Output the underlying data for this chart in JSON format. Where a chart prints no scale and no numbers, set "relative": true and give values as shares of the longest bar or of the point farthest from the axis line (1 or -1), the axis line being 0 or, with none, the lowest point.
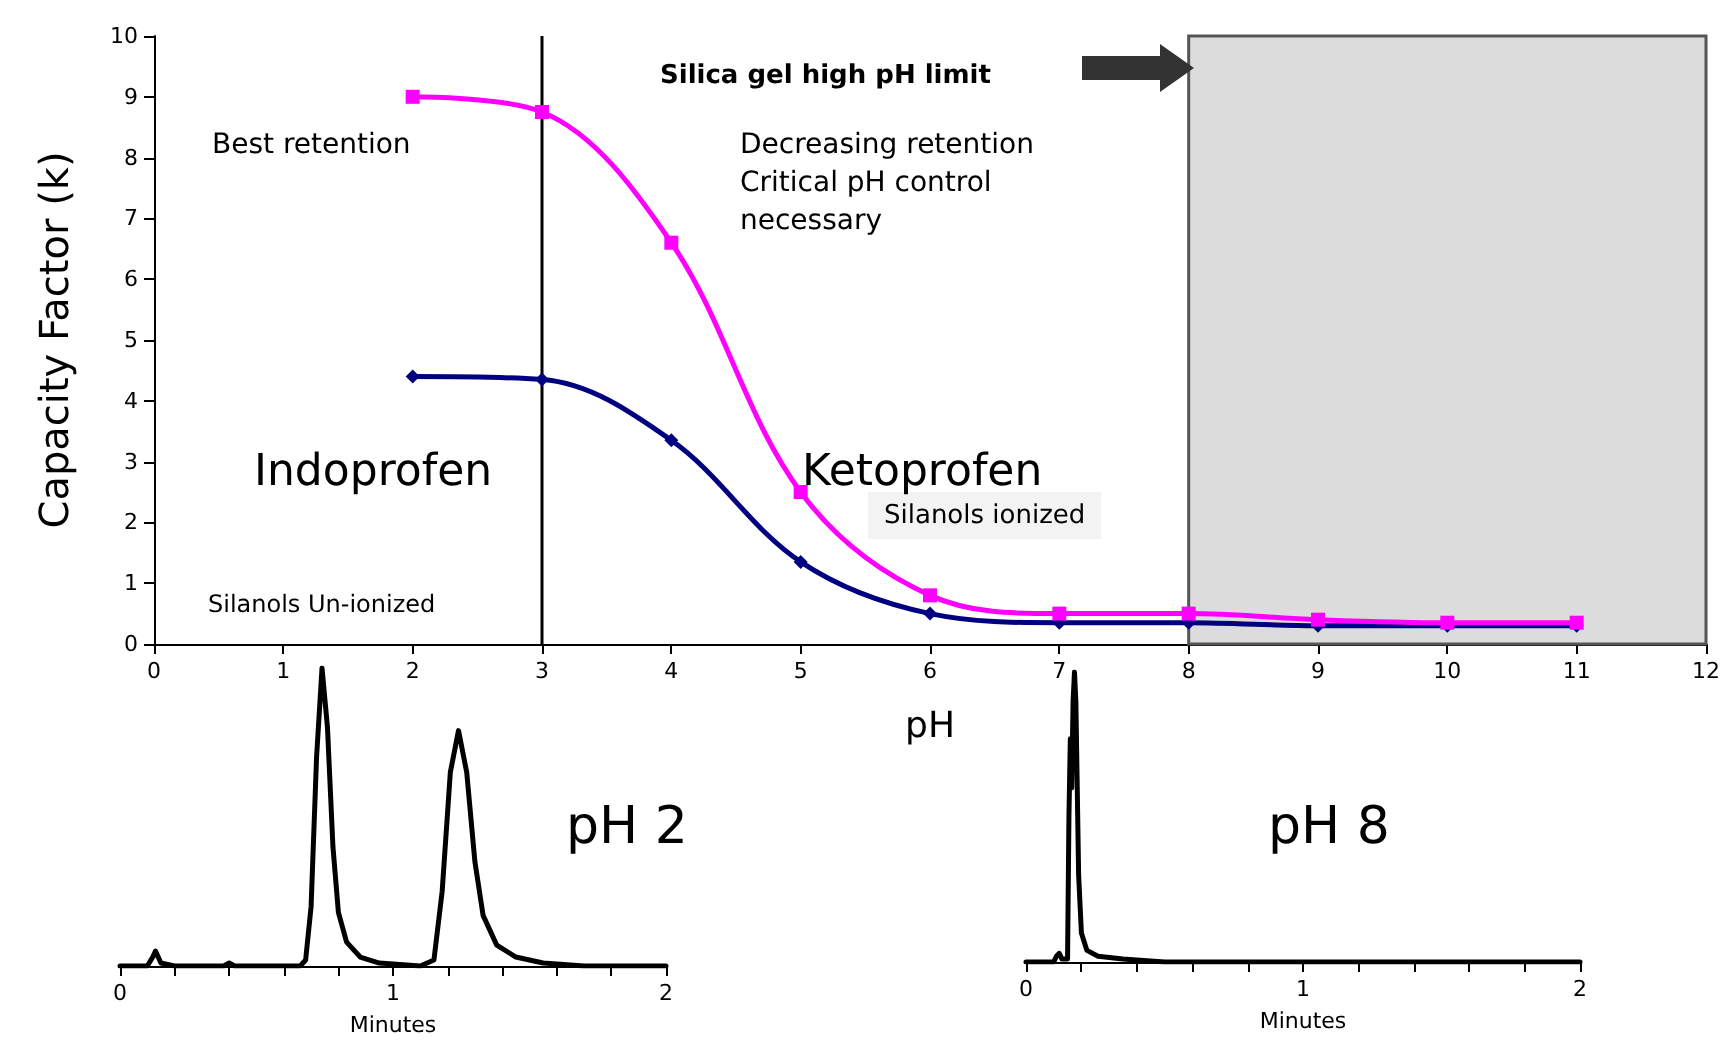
{
  "chart_data": [
    {
      "type": "line",
      "xlabel": "pH",
      "ylabel": "Capacity Factor (k)",
      "x": [
        2,
        3,
        4,
        5,
        6,
        7,
        8,
        9,
        10,
        11
      ],
      "series": [
        {
          "name": "Indoprofen",
          "color": "#000080",
          "marker": "diamond",
          "values": [
            4.4,
            4.35,
            3.35,
            1.35,
            0.5,
            0.35,
            0.35,
            0.3,
            0.3,
            0.3
          ]
        },
        {
          "name": "Ketoprofen",
          "color": "#ff00ff",
          "marker": "square",
          "values": [
            9.0,
            8.75,
            6.6,
            2.5,
            0.8,
            0.5,
            0.5,
            0.4,
            0.35,
            0.35
          ]
        }
      ],
      "xlim": [
        0,
        12
      ],
      "xticks": [
        0,
        1,
        2,
        3,
        4,
        5,
        6,
        7,
        8,
        9,
        10,
        11,
        12
      ],
      "ylim": [
        0,
        10
      ],
      "yticks": [
        0,
        1,
        2,
        3,
        4,
        5,
        6,
        7,
        8,
        9,
        10
      ],
      "ref_lines": [
        {
          "axis": "x",
          "value": 3,
          "color": "#000000"
        }
      ],
      "bands": [
        {
          "axis": "x",
          "from": 8,
          "to": 12,
          "color": "#dcdcdc"
        }
      ],
      "annotations": [
        "Best retention",
        "Decreasing retention\nCritical pH control\nnecessary",
        "Silanols ionized",
        "Silanols Un-ionized",
        "Silica gel high pH limit"
      ]
    },
    {
      "type": "line",
      "relative": true,
      "xlabel": "Minutes",
      "tick_labels": "x",
      "series": [
        {
          "color": "#000000",
          "marker": "none",
          "x": [
            0,
            0.1,
            0.12,
            0.13,
            0.15,
            0.2,
            0.38,
            0.4,
            0.42,
            0.66,
            0.68,
            0.7,
            0.72,
            0.74,
            0.76,
            0.78,
            0.8,
            0.83,
            0.88,
            0.95,
            1.1,
            1.15,
            1.18,
            1.21,
            1.24,
            1.27,
            1.3,
            1.33,
            1.38,
            1.45,
            1.55,
            1.7,
            2
          ],
          "values": [
            0,
            0,
            0.03,
            0.05,
            0.01,
            0,
            0,
            0.01,
            0,
            0,
            0.02,
            0.2,
            0.7,
            1,
            0.8,
            0.4,
            0.18,
            0.08,
            0.03,
            0.01,
            0,
            0.02,
            0.25,
            0.65,
            0.79,
            0.65,
            0.35,
            0.17,
            0.07,
            0.03,
            0.01,
            0,
            0
          ]
        }
      ],
      "xlim": [
        0,
        2
      ],
      "xticks": [
        0,
        {
          "value": 0.2,
          "label": null
        },
        {
          "value": 0.4,
          "label": null
        },
        {
          "value": 0.6,
          "label": null
        },
        {
          "value": 0.8,
          "label": null
        },
        1,
        {
          "value": 1.2,
          "label": null
        },
        {
          "value": 1.4,
          "label": null
        },
        {
          "value": 1.6,
          "label": null
        },
        {
          "value": 1.8,
          "label": null
        },
        2
      ],
      "annotations": [
        "pH 2"
      ]
    },
    {
      "type": "line",
      "relative": true,
      "xlabel": "Minutes",
      "tick_labels": "x",
      "series": [
        {
          "color": "#000000",
          "marker": "none",
          "x": [
            0,
            0.1,
            0.11,
            0.12,
            0.13,
            0.15,
            0.155,
            0.16,
            0.165,
            0.17,
            0.175,
            0.18,
            0.19,
            0.2,
            0.22,
            0.26,
            0.35,
            0.5,
            2
          ],
          "values": [
            0,
            0,
            0.02,
            0.03,
            0.01,
            0.01,
            0.5,
            0.77,
            0.6,
            0.9,
            1,
            0.9,
            0.3,
            0.1,
            0.04,
            0.02,
            0.01,
            0,
            0
          ]
        }
      ],
      "xlim": [
        0,
        2
      ],
      "xticks": [
        0,
        {
          "value": 0.2,
          "label": null
        },
        {
          "value": 0.4,
          "label": null
        },
        {
          "value": 0.6,
          "label": null
        },
        {
          "value": 0.8,
          "label": null
        },
        1,
        {
          "value": 1.2,
          "label": null
        },
        {
          "value": 1.4,
          "label": null
        },
        {
          "value": 1.6,
          "label": null
        },
        {
          "value": 1.8,
          "label": null
        },
        2
      ],
      "annotations": [
        "pH 8"
      ]
    }
  ]
}
